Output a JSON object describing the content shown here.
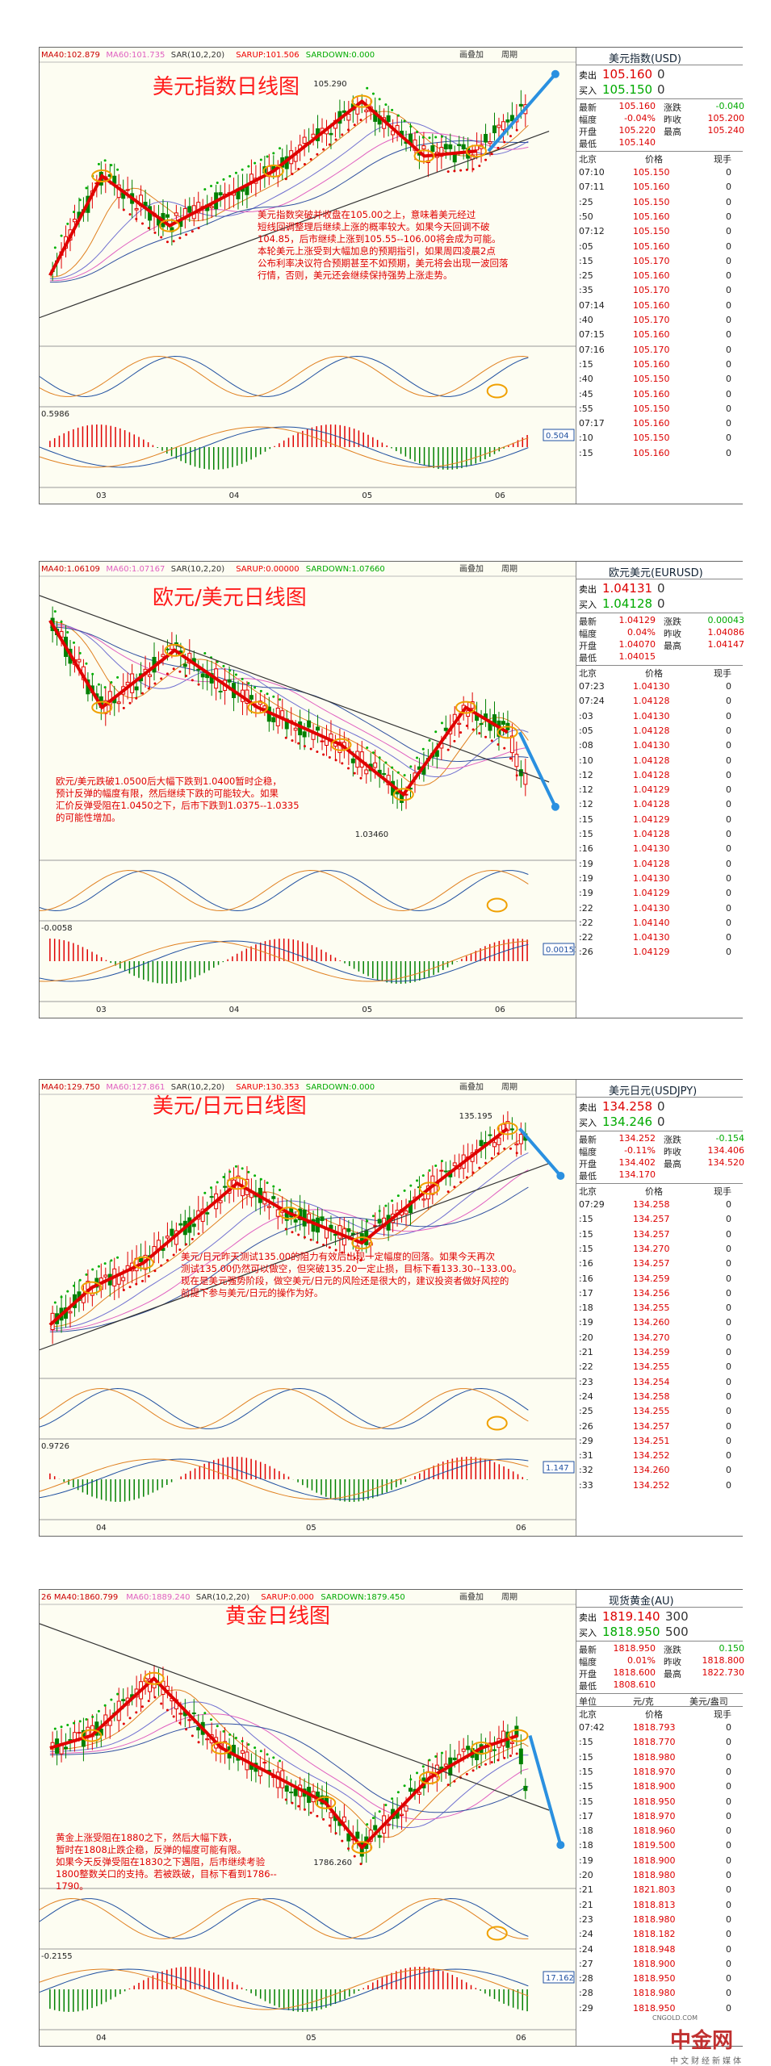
{
  "panels": [
    {
      "header": [
        "MA40:102.879",
        "MA60:101.735",
        "SAR(10,2,20)",
        "SARUP:101.506",
        "SARDOWN:0.000"
      ],
      "tools": [
        "画叠加",
        "周期"
      ],
      "title": "美元指数日线图",
      "price_label": "105.290",
      "ind1": "0.5986",
      "ind2": "0.504",
      "xlabels": [
        "03",
        "04",
        "05",
        "06"
      ],
      "annotation": [
        "美元指数突破并收盘在105.00之上，意味着美元经过",
        "短线回调整理后继续上涨的概率较大。如果今天回调不破",
        "104.85，后市继续上涨到105.55--106.00将会成为可能。",
        "本轮美元上涨受到大幅加息的预期指引，如果周四凌晨2点",
        "公布利率决议符合预期甚至不如预期，美元将会出现一波回落",
        "行情，否则，美元还会继续保持强势上涨走势。"
      ],
      "quote": {
        "name": "美元指数(USD)",
        "sell": [
          "卖出",
          "105.160",
          "0"
        ],
        "buy": [
          "买入",
          "105.150",
          "0"
        ],
        "stats": [
          [
            "最新",
            "105.160",
            "涨跌",
            "-0.040"
          ],
          [
            "幅度",
            "-0.04%",
            "昨收",
            "105.200"
          ],
          [
            "开盘",
            "105.220",
            "最高",
            "105.240"
          ],
          [
            "最低",
            "105.140"
          ]
        ],
        "cols": [
          "北京",
          "价格",
          "现手"
        ],
        "rows": [
          [
            "07:10",
            "105.150",
            "0"
          ],
          [
            "07:11",
            "105.160",
            "0"
          ],
          [
            ":25",
            "105.150",
            "0"
          ],
          [
            ":50",
            "105.160",
            "0"
          ],
          [
            "07:12",
            "105.150",
            "0"
          ],
          [
            ":05",
            "105.160",
            "0"
          ],
          [
            ":15",
            "105.170",
            "0"
          ],
          [
            ":25",
            "105.160",
            "0"
          ],
          [
            ":35",
            "105.170",
            "0"
          ],
          [
            "07:14",
            "105.160",
            "0"
          ],
          [
            ":40",
            "105.170",
            "0"
          ],
          [
            "07:15",
            "105.160",
            "0"
          ],
          [
            "07:16",
            "105.170",
            "0"
          ],
          [
            ":15",
            "105.160",
            "0"
          ],
          [
            ":40",
            "105.150",
            "0"
          ],
          [
            ":45",
            "105.160",
            "0"
          ],
          [
            ":55",
            "105.150",
            "0"
          ],
          [
            "07:17",
            "105.160",
            "0"
          ],
          [
            ":10",
            "105.150",
            "0"
          ],
          [
            ":15",
            "105.160",
            "0"
          ]
        ]
      }
    },
    {
      "header": [
        "MA40:1.06109",
        "MA60:1.07167",
        "SAR(10,2,20)",
        "SARUP:0.00000",
        "SARDOWN:1.07660"
      ],
      "tools": [
        "画叠加",
        "周期"
      ],
      "title": "欧元/美元日线图",
      "price_label": "1.03460",
      "ind1": "-0.0058",
      "ind2": "0.00151",
      "xlabels": [
        "03",
        "04",
        "05",
        "06"
      ],
      "annotation": [
        "欧元/美元跌破1.0500后大幅下跌到1.0400暂时企稳，",
        "预计反弹的幅度有限，然后继续下跌的可能较大。如果",
        "汇价反弹受阻在1.0450之下，后市下跌到1.0375--1.0335",
        "的可能性增加。"
      ],
      "quote": {
        "name": "欧元美元(EURUSD)",
        "sell": [
          "卖出",
          "1.04131",
          "0"
        ],
        "buy": [
          "买入",
          "1.04128",
          "0"
        ],
        "stats": [
          [
            "最新",
            "1.04129",
            "涨跌",
            "0.00043"
          ],
          [
            "幅度",
            "0.04%",
            "昨收",
            "1.04086"
          ],
          [
            "开盘",
            "1.04070",
            "最高",
            "1.04147"
          ],
          [
            "最低",
            "1.04015"
          ]
        ],
        "cols": [
          "北京",
          "价格",
          "现手"
        ],
        "rows": [
          [
            "07:23",
            "1.04130",
            "0"
          ],
          [
            "07:24",
            "1.04128",
            "0"
          ],
          [
            ":03",
            "1.04130",
            "0"
          ],
          [
            ":05",
            "1.04128",
            "0"
          ],
          [
            ":08",
            "1.04130",
            "0"
          ],
          [
            ":10",
            "1.04128",
            "0"
          ],
          [
            ":12",
            "1.04128",
            "0"
          ],
          [
            ":12",
            "1.04129",
            "0"
          ],
          [
            ":12",
            "1.04128",
            "0"
          ],
          [
            ":15",
            "1.04129",
            "0"
          ],
          [
            ":15",
            "1.04128",
            "0"
          ],
          [
            ":16",
            "1.04130",
            "0"
          ],
          [
            ":19",
            "1.04128",
            "0"
          ],
          [
            ":19",
            "1.04130",
            "0"
          ],
          [
            ":19",
            "1.04129",
            "0"
          ],
          [
            ":22",
            "1.04130",
            "0"
          ],
          [
            ":22",
            "1.04140",
            "0"
          ],
          [
            ":22",
            "1.04130",
            "0"
          ],
          [
            ":26",
            "1.04129",
            "0"
          ]
        ]
      }
    },
    {
      "header": [
        "MA40:129.750",
        "MA60:127.861",
        "SAR(10,2,20)",
        "SARUP:130.353",
        "SARDOWN:0.000"
      ],
      "tools": [
        "画叠加",
        "周期"
      ],
      "title": "美元/日元日线图",
      "price_label": "135.195",
      "ind1": "0.9726",
      "ind2": "1.147",
      "xlabels": [
        "04",
        "05",
        "06"
      ],
      "annotation": [
        "美元/日元昨天测试135.00的阻力有效后出现一定幅度的回落。如果今天再次",
        "测试135.00仍然可以做空，但突破135.20一定止损，目标下看133.30--133.00。",
        "现在是美元强势阶段，做空美元/日元的风险还是很大的，建议投资者做好风控的",
        "前提下参与美元/日元的操作为好。"
      ],
      "quote": {
        "name": "美元日元(USDJPY)",
        "sell": [
          "卖出",
          "134.258",
          "0"
        ],
        "buy": [
          "买入",
          "134.246",
          "0"
        ],
        "stats": [
          [
            "最新",
            "134.252",
            "涨跌",
            "-0.154"
          ],
          [
            "幅度",
            "-0.11%",
            "昨收",
            "134.406"
          ],
          [
            "开盘",
            "134.402",
            "最高",
            "134.520"
          ],
          [
            "最低",
            "134.170"
          ]
        ],
        "cols": [
          "北京",
          "价格",
          "现手"
        ],
        "rows": [
          [
            "07:29",
            "134.258",
            "0"
          ],
          [
            ":15",
            "134.257",
            "0"
          ],
          [
            ":15",
            "134.257",
            "0"
          ],
          [
            ":15",
            "134.270",
            "0"
          ],
          [
            ":16",
            "134.257",
            "0"
          ],
          [
            ":16",
            "134.259",
            "0"
          ],
          [
            ":17",
            "134.256",
            "0"
          ],
          [
            ":18",
            "134.255",
            "0"
          ],
          [
            ":19",
            "134.260",
            "0"
          ],
          [
            ":20",
            "134.270",
            "0"
          ],
          [
            ":21",
            "134.259",
            "0"
          ],
          [
            ":22",
            "134.255",
            "0"
          ],
          [
            ":23",
            "134.254",
            "0"
          ],
          [
            ":24",
            "134.258",
            "0"
          ],
          [
            ":25",
            "134.255",
            "0"
          ],
          [
            ":26",
            "134.257",
            "0"
          ],
          [
            ":29",
            "134.251",
            "0"
          ],
          [
            ":31",
            "134.252",
            "0"
          ],
          [
            ":32",
            "134.260",
            "0"
          ],
          [
            ":33",
            "134.252",
            "0"
          ]
        ]
      }
    },
    {
      "header": [
        "26 MA40:1860.799",
        "MA60:1889.240",
        "SAR(10,2,20)",
        "SARUP:0.000",
        "SARDOWN:1879.450"
      ],
      "tools": [
        "画叠加",
        "周期"
      ],
      "title": "黄金日线图",
      "price_label": "1786.260",
      "ind1": "-0.2155",
      "ind2": "17.162",
      "xlabels": [
        "04",
        "05",
        "06"
      ],
      "annotation": [
        "黄金上涨受阻在1880之下，然后大幅下跌，",
        "暂时在1808止跌企稳，反弹的幅度可能有限。",
        "如果今天反弹受阻在1830之下遇阻，后市继续考验",
        "1800整数关口的支持。若被跌破，目标下看到1786--",
        "1790。"
      ],
      "quote": {
        "name": "现货黄金(AU)",
        "sell": [
          "卖出",
          "1819.140",
          "300"
        ],
        "buy": [
          "买入",
          "1818.950",
          "500"
        ],
        "stats": [
          [
            "最新",
            "1818.950",
            "涨跌",
            "0.150"
          ],
          [
            "幅度",
            "0.01%",
            "昨收",
            "1818.800"
          ],
          [
            "开盘",
            "1818.600",
            "最高",
            "1822.730"
          ],
          [
            "最低",
            "1808.610"
          ]
        ],
        "units": [
          "单位",
          "元/克",
          "美元/盎司"
        ],
        "cols": [
          "北京",
          "价格",
          "现手"
        ],
        "rows": [
          [
            "07:42",
            "1818.793",
            "0"
          ],
          [
            ":15",
            "1818.770",
            "0"
          ],
          [
            ":15",
            "1818.980",
            "0"
          ],
          [
            ":15",
            "1818.970",
            "0"
          ],
          [
            ":15",
            "1818.900",
            "0"
          ],
          [
            ":15",
            "1818.950",
            "0"
          ],
          [
            ":17",
            "1818.970",
            "0"
          ],
          [
            ":18",
            "1818.960",
            "0"
          ],
          [
            ":18",
            "1819.500",
            "0"
          ],
          [
            ":19",
            "1818.900",
            "0"
          ],
          [
            ":20",
            "1818.980",
            "0"
          ],
          [
            ":21",
            "1821.803",
            "0"
          ],
          [
            ":21",
            "1818.813",
            "0"
          ],
          [
            ":23",
            "1818.980",
            "0"
          ],
          [
            ":24",
            "1818.182",
            "0"
          ],
          [
            ":24",
            "1818.948",
            "0"
          ],
          [
            ":27",
            "1818.900",
            "0"
          ],
          [
            ":28",
            "1818.950",
            "0"
          ],
          [
            ":28",
            "1818.980",
            "0"
          ],
          [
            ":29",
            "1818.950",
            "0"
          ]
        ]
      }
    }
  ],
  "watermark": {
    "brand": "中金网",
    "site": "CNGOLD.COM",
    "slogan": "中文财经新媒体"
  }
}
